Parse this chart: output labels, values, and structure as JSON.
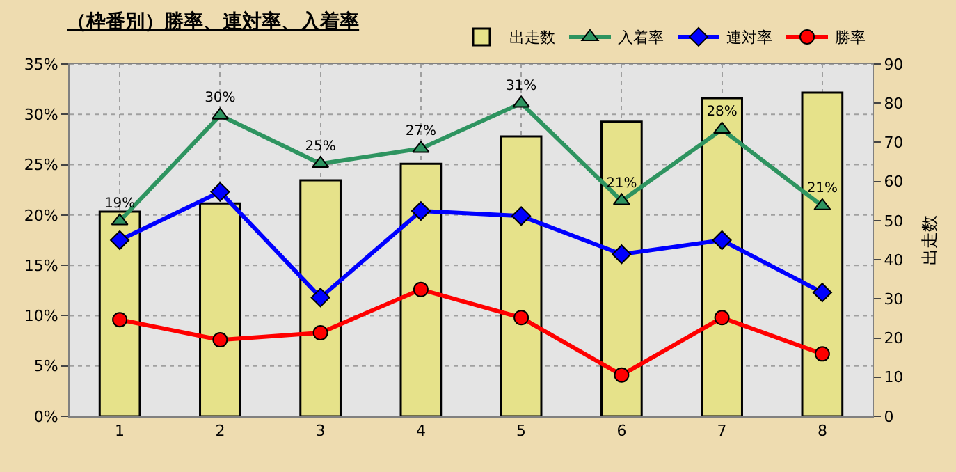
{
  "chart_data": {
    "type": "line",
    "title": "（枠番別）勝率、連対率、入着率",
    "y2label": "出走数",
    "categories": [
      "1",
      "2",
      "3",
      "4",
      "5",
      "6",
      "7",
      "8"
    ],
    "series": [
      {
        "name": "出走数",
        "type": "bar",
        "axis": "y2",
        "color": "#e6e28a",
        "values": [
          52.3,
          54.4,
          60.3,
          64.5,
          71.5,
          75.3,
          81.3,
          82.7
        ]
      },
      {
        "name": "入着率",
        "color": "#2e9460",
        "marker": "triangle",
        "values": [
          19.4,
          29.9,
          25.1,
          26.6,
          31.1,
          21.4,
          28.5,
          20.9
        ],
        "value_labels": [
          "19%",
          "30%",
          "25%",
          "27%",
          "31%",
          "21%",
          "28%",
          "21%"
        ]
      },
      {
        "name": "連対率",
        "color": "#0000ff",
        "marker": "diamond",
        "values": [
          17.5,
          22.3,
          11.8,
          20.4,
          19.9,
          16.1,
          17.5,
          12.3
        ]
      },
      {
        "name": "勝率",
        "color": "#ff0000",
        "marker": "circle",
        "values": [
          9.6,
          7.6,
          8.3,
          12.6,
          9.8,
          4.1,
          9.8,
          6.2
        ]
      }
    ],
    "ylim": [
      0,
      35
    ],
    "yticks": [
      {
        "value": 0,
        "label": "0%"
      },
      {
        "value": 5,
        "label": "5%"
      },
      {
        "value": 10,
        "label": "10%"
      },
      {
        "value": 15,
        "label": "15%"
      },
      {
        "value": 20,
        "label": "20%"
      },
      {
        "value": 25,
        "label": "25%"
      },
      {
        "value": 30,
        "label": "30%"
      },
      {
        "value": 35,
        "label": "35%"
      }
    ],
    "y2lim": [
      0,
      90
    ],
    "y2ticks": [
      0,
      10,
      20,
      30,
      40,
      50,
      60,
      70,
      80,
      90
    ],
    "grid": true,
    "legend": "top right"
  }
}
